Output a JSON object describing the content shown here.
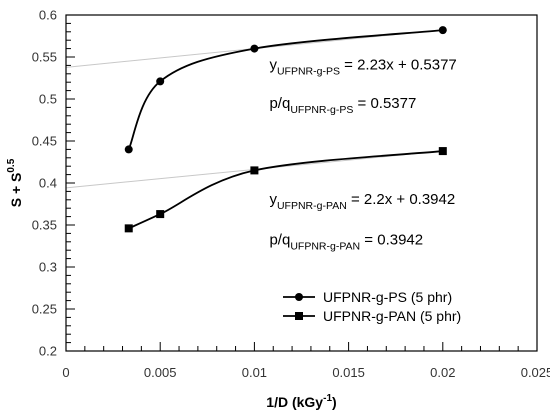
{
  "chart_data": {
    "type": "line",
    "title": "",
    "xlabel": {
      "main": "1/D (kGy",
      "sup": "-1",
      "close": ")"
    },
    "ylabel": {
      "main": "S + S",
      "sup": "0.5"
    },
    "xlim": [
      0,
      0.025
    ],
    "ylim": [
      0.2,
      0.6
    ],
    "x_ticks": [
      0,
      0.005,
      0.01,
      0.015,
      0.02,
      0.025
    ],
    "x_tick_labels": [
      "0",
      "0.005",
      "0.01",
      "0.015",
      "0.02",
      "0.025"
    ],
    "y_ticks": [
      0.2,
      0.25,
      0.3,
      0.35,
      0.4,
      0.45,
      0.5,
      0.55,
      0.6
    ],
    "y_tick_labels": [
      "0.2",
      "0.25",
      "0.3",
      "0.35",
      "0.4",
      "0.45",
      "0.5",
      "0.55",
      "0.6"
    ],
    "grid": false,
    "legend_position": "bottom-right",
    "series": [
      {
        "name": "UFPNR-g-PS (5 phr)",
        "marker": "circle",
        "color": "#000000",
        "x": [
          0.00333,
          0.005,
          0.01,
          0.02
        ],
        "values": [
          0.44,
          0.521,
          0.56,
          0.582
        ],
        "fit": {
          "slope": 2.23,
          "intercept": 0.5377
        }
      },
      {
        "name": "UFPNR-g-PAN (5 phr)",
        "marker": "square",
        "color": "#000000",
        "x": [
          0.00333,
          0.005,
          0.01,
          0.02
        ],
        "values": [
          0.346,
          0.363,
          0.415,
          0.438
        ],
        "fit": {
          "slope": 2.2,
          "intercept": 0.3942
        }
      }
    ],
    "annotations": [
      {
        "prefix": "y",
        "sub": "UFPNR-g-PS",
        "suffix": "= 2.23x + 0.5377",
        "anchor": [
          0.0108,
          0.535
        ]
      },
      {
        "prefix": "p/q",
        "sub": "UFPNR-g-PS",
        "suffix": "= 0.5377",
        "anchor": [
          0.0108,
          0.489
        ]
      },
      {
        "prefix": "y",
        "sub": "UFPNR-g-PAN",
        "suffix": "= 2.2x + 0.3942",
        "anchor": [
          0.0108,
          0.375
        ]
      },
      {
        "prefix": "p/q",
        "sub": "UFPNR-g-PAN",
        "suffix": "= 0.3942",
        "anchor": [
          0.0108,
          0.327
        ]
      }
    ],
    "colors": {
      "line": "#000000",
      "fit_line": "#c8c8c8",
      "text": "#000000"
    }
  }
}
